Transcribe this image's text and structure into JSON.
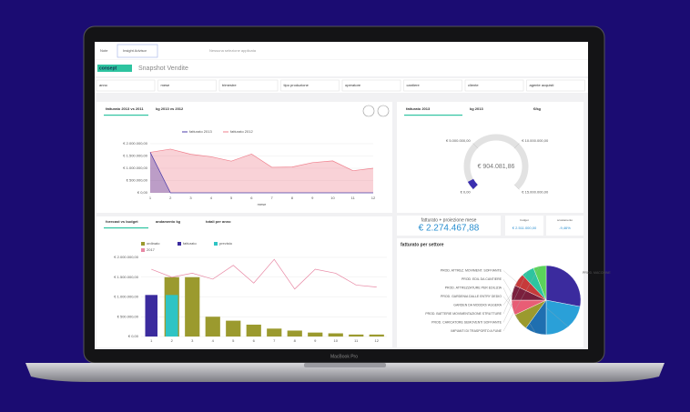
{
  "toolbar": {
    "tabs": [
      "Note",
      "Insight Advisor"
    ],
    "selection": "Nessuna selezione applicata"
  },
  "header": {
    "logo": "consept",
    "title": "Snapshot Vendite"
  },
  "filters": [
    "anno",
    "mese",
    "trimestre",
    "tipo produzione",
    "operatore",
    "cantiere",
    "cliente",
    "agente acquisti"
  ],
  "line_chart": {
    "type": "area",
    "tabs": [
      "fatturato 2013 vs 2011",
      "kg 2013 vs 2012"
    ],
    "categories": [
      "1",
      "2",
      "3",
      "4",
      "5",
      "6",
      "7",
      "8",
      "9",
      "10",
      "11",
      "12"
    ],
    "x_label": "mese",
    "series": [
      {
        "name": "fatturato 2013",
        "color": "#4b3ba8",
        "values": [
          1650000,
          0,
          0,
          0,
          0,
          0,
          0,
          0,
          0,
          0,
          0,
          0
        ]
      },
      {
        "name": "fatturato 2012",
        "color": "#ef7f8c",
        "values": [
          1650000,
          1780000,
          1570000,
          1470000,
          1290000,
          1580000,
          1040000,
          1050000,
          1230000,
          1300000,
          900000,
          1000000
        ]
      }
    ],
    "ylim": [
      0,
      2000000
    ],
    "yticks": [
      {
        "value": 0,
        "label": "€ 0,00"
      },
      {
        "value": 500000,
        "label": "€ 500.000,00"
      },
      {
        "value": 1000000,
        "label": "€ 1.000.000,00"
      },
      {
        "value": 1500000,
        "label": "€ 1.500.000,00"
      },
      {
        "value": 2000000,
        "label": "€ 2.000.000,00"
      }
    ]
  },
  "gauge": {
    "type": "gauge",
    "tabs": [
      "fatturato 2013",
      "kg 2013",
      "€/kg"
    ],
    "value": 904081.86,
    "value_label": "€ 904.081,86",
    "color": "#3b2fb0",
    "lim": [
      0,
      15000000
    ],
    "ticks": [
      {
        "value": 0,
        "label": "€ 0,00"
      },
      {
        "value": 5000000,
        "label": "€ 5.000.000,00"
      },
      {
        "value": 10000000,
        "label": "€ 10.000.000,00"
      },
      {
        "value": 15000000,
        "label": "€ 15.000.000,00"
      }
    ]
  },
  "kpis": [
    {
      "label": "fatturato + proiezione mese",
      "value": "€ 2.274.467,88"
    },
    {
      "label": "budget",
      "value": "€ 2.511.000,00"
    },
    {
      "label": "scostamento",
      "value": "-9,46%"
    }
  ],
  "bar_chart": {
    "type": "bar",
    "tabs": [
      "forecast vs budget",
      "andamento kg",
      "totali per anno"
    ],
    "categories": [
      "1",
      "2",
      "3",
      "4",
      "5",
      "6",
      "7",
      "8",
      "9",
      "10",
      "11",
      "12"
    ],
    "series": [
      {
        "name": "ordinato",
        "color": "#9b9a2e",
        "values": [
          0,
          1500000,
          1500000,
          500000,
          400000,
          300000,
          200000,
          150000,
          100000,
          80000,
          50000,
          50000
        ]
      },
      {
        "name": "fatturato",
        "color": "#3b2b9e",
        "values": [
          1050000,
          0,
          0,
          0,
          0,
          0,
          0,
          0,
          0,
          0,
          0,
          0
        ]
      },
      {
        "name": "previsto",
        "color": "#2ec4c4",
        "values": [
          0,
          1050000,
          0,
          0,
          0,
          0,
          0,
          0,
          0,
          0,
          0,
          0
        ]
      },
      {
        "name": "2017",
        "color": "#e888a4",
        "type": "line",
        "values": [
          1700000,
          1500000,
          1600000,
          1450000,
          1800000,
          1350000,
          1950000,
          1200000,
          1700000,
          1600000,
          1300000,
          1250000
        ]
      }
    ],
    "ylim": [
      0,
      2000000
    ],
    "yticks": [
      {
        "value": 0,
        "label": "€ 0,00"
      },
      {
        "value": 500000,
        "label": "€ 500.000,00"
      },
      {
        "value": 1000000,
        "label": "€ 1.000.000,00"
      },
      {
        "value": 1500000,
        "label": "€ 1.500.000,00"
      },
      {
        "value": 2000000,
        "label": "€ 2.000.000,00"
      }
    ]
  },
  "pie_chart": {
    "type": "pie",
    "title": "fatturato per settore",
    "slices": [
      {
        "name": "PROD. MACCHINE",
        "color": "#3b2b9e",
        "value": 28
      },
      {
        "name": "PROD. ATTREZ. MOVIMENT. SOFFIANTE",
        "color": "#2aa0d8",
        "value": 22
      },
      {
        "name": "PROD. EDIL DA CANTIERE",
        "color": "#1f6fb0",
        "value": 10
      },
      {
        "name": "PROD. ATTREZZATURE PER EDILIZIA",
        "color": "#9b9a2e",
        "value": 8
      },
      {
        "name": "PROD. GARDENIA DALLE ENTRY DEDIO",
        "color": "#e85d75",
        "value": 7
      },
      {
        "name": "GARDEN DA MODDIO/ AGGERA",
        "color": "#7a1f3d",
        "value": 7
      },
      {
        "name": "PROD. BATTERIE MOVIMENTAZIONE STRUTTURE",
        "color": "#c73a3a",
        "value": 6
      },
      {
        "name": "PROD. CARICATORE SEMOVENTI SOFFIANTE",
        "color": "#2ec4a0",
        "value": 6
      },
      {
        "name": "IMPIANTI DI TRASPORTO A FUNE",
        "color": "#5bd35b",
        "value": 6
      }
    ]
  },
  "device": "MacBook Pro"
}
